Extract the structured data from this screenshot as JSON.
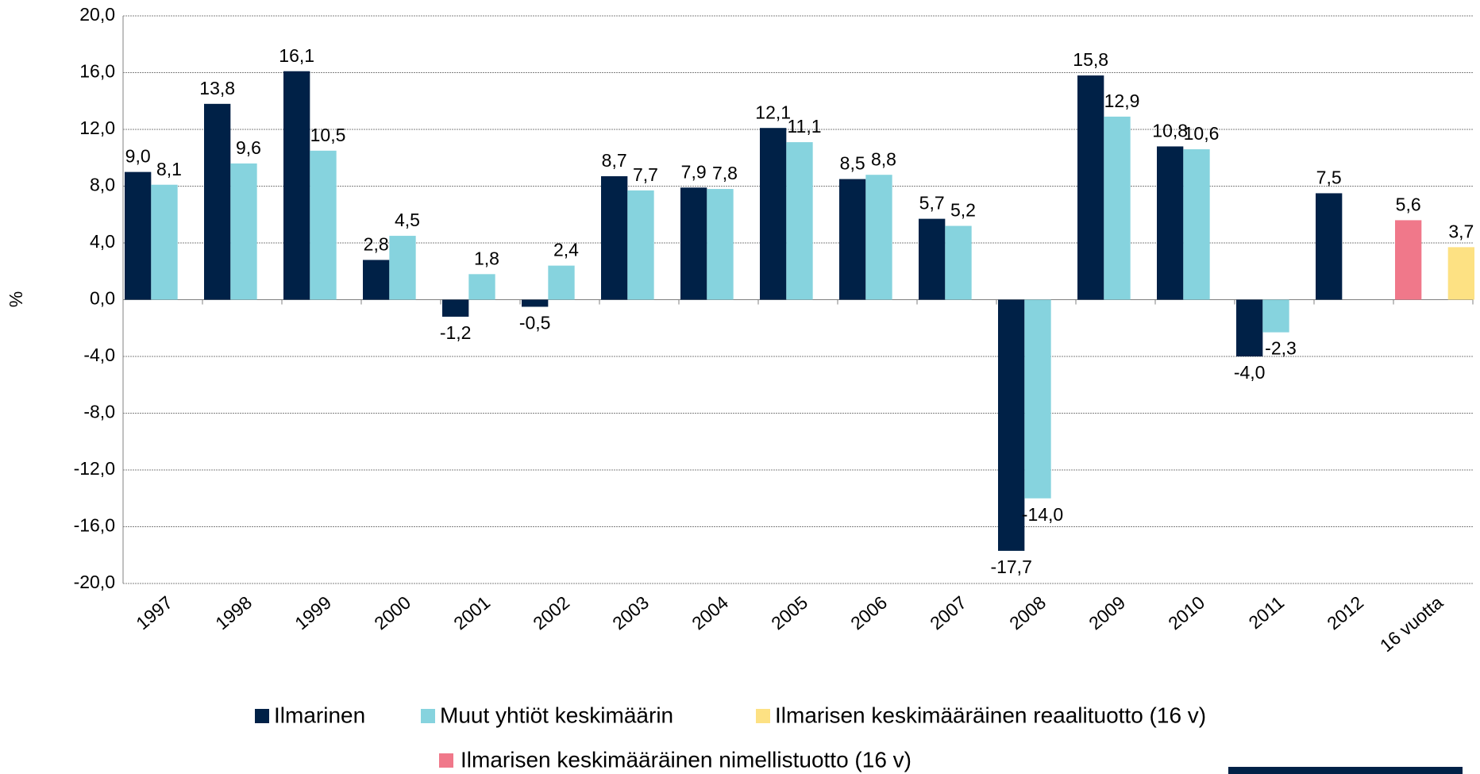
{
  "chart_data": {
    "type": "bar",
    "y_label": "%",
    "categories": [
      "1997",
      "1998",
      "1999",
      "2000",
      "2001",
      "2002",
      "2003",
      "2004",
      "2005",
      "2006",
      "2007",
      "2008",
      "2009",
      "2010",
      "2011",
      "2012",
      "16 vuotta"
    ],
    "series": [
      {
        "name": "Ilmarinen",
        "color": "#002147",
        "values": [
          9.0,
          13.8,
          16.1,
          2.8,
          -1.2,
          -0.5,
          8.7,
          7.9,
          12.1,
          8.5,
          5.7,
          -17.7,
          15.8,
          10.8,
          -4.0,
          7.5,
          null
        ],
        "value_labels": [
          "9,0",
          "13,8",
          "16,1",
          "2,8",
          "-1,2",
          "-0,5",
          "8,7",
          "7,9",
          "12,1",
          "8,5",
          "5,7",
          "-17,7",
          "15,8",
          "10,8",
          "-4,0",
          "7,5",
          null
        ]
      },
      {
        "name": "Muut yhtiöt keskimäärin",
        "color": "#86d3de",
        "values": [
          8.1,
          9.6,
          10.5,
          4.5,
          1.8,
          2.4,
          7.7,
          7.8,
          11.1,
          8.8,
          5.2,
          -14.0,
          12.9,
          10.6,
          -2.3,
          null,
          null
        ],
        "value_labels": [
          "8,1",
          "9,6",
          "10,5",
          "4,5",
          "1,8",
          "2,4",
          "7,7",
          "7,8",
          "11,1",
          "8,8",
          "5,2",
          "-14,0",
          "12,9",
          "10,6",
          "-2,3",
          null,
          null
        ]
      },
      {
        "name": "Ilmarisen keskimääräinen reaalituotto (16 v)",
        "color": "#fde183",
        "values": [
          null,
          null,
          null,
          null,
          null,
          null,
          null,
          null,
          null,
          null,
          null,
          null,
          null,
          null,
          null,
          null,
          3.7
        ],
        "value_labels": [
          null,
          null,
          null,
          null,
          null,
          null,
          null,
          null,
          null,
          null,
          null,
          null,
          null,
          null,
          null,
          null,
          "3,7"
        ]
      },
      {
        "name": "Ilmarisen keskimääräinen nimellistuotto (16 v)",
        "color": "#f0788a",
        "values": [
          null,
          null,
          null,
          null,
          null,
          null,
          null,
          null,
          null,
          null,
          null,
          null,
          null,
          null,
          null,
          null,
          5.6
        ],
        "value_labels": [
          null,
          null,
          null,
          null,
          null,
          null,
          null,
          null,
          null,
          null,
          null,
          null,
          null,
          null,
          null,
          null,
          "5,6"
        ]
      }
    ],
    "ylim": [
      -20,
      20
    ],
    "yticks": [
      {
        "value": -20,
        "label": "-20,0"
      },
      {
        "value": -16,
        "label": "-16,0"
      },
      {
        "value": -12,
        "label": "-12,0"
      },
      {
        "value": -8,
        "label": "-8,0"
      },
      {
        "value": -4,
        "label": "-4,0"
      },
      {
        "value": 0,
        "label": "0,0"
      },
      {
        "value": 4,
        "label": "4,0"
      },
      {
        "value": 8,
        "label": "8,0"
      },
      {
        "value": 12,
        "label": "12,0"
      },
      {
        "value": 16,
        "label": "16,0"
      },
      {
        "value": 20,
        "label": "20,0"
      }
    ],
    "grid": true
  }
}
